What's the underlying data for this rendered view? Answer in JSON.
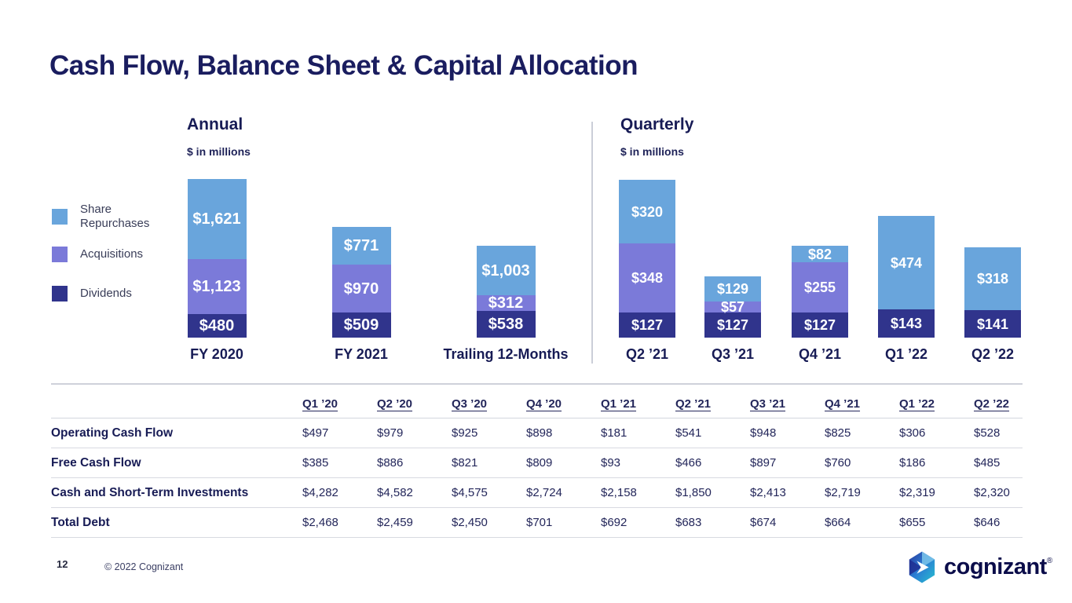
{
  "slide": {
    "title": "Cash Flow, Balance Sheet & Capital Allocation",
    "page_number": "12",
    "copyright": "© 2022 Cognizant",
    "logo_text": "cognizant"
  },
  "colors": {
    "share_repurchases": "#69A5DC",
    "acquisitions": "#7B7AD9",
    "dividends": "#30348C",
    "heading_navy": "#171B55"
  },
  "legend": {
    "items": [
      {
        "key": "share-repurchases",
        "label": "Share Repurchases",
        "color": "#69A5DC"
      },
      {
        "key": "acquisitions",
        "label": "Acquisitions",
        "color": "#7B7AD9"
      },
      {
        "key": "dividends",
        "label": "Dividends",
        "color": "#30348C"
      }
    ]
  },
  "chart_data": [
    {
      "id": "annual",
      "type": "bar",
      "stacked": true,
      "title": "Annual",
      "subtitle": "$ in millions",
      "categories": [
        "FY 2020",
        "FY 2021",
        "Trailing 12-Months"
      ],
      "series": [
        {
          "name": "Share Repurchases",
          "values": [
            1621,
            771,
            1003
          ],
          "display": [
            "$1,621",
            "$771",
            "$1,003"
          ]
        },
        {
          "name": "Acquisitions",
          "values": [
            1123,
            970,
            312
          ],
          "display": [
            "$1,123",
            "$970",
            "$312"
          ]
        },
        {
          "name": "Dividends",
          "values": [
            480,
            509,
            538
          ],
          "display": [
            "$480",
            "$509",
            "$538"
          ]
        }
      ],
      "legend_position": "left",
      "grid": false
    },
    {
      "id": "quarterly",
      "type": "bar",
      "stacked": true,
      "title": "Quarterly",
      "subtitle": "$ in millions",
      "categories": [
        "Q2 ’21",
        "Q3 ’21",
        "Q4 ’21",
        "Q1 ’22",
        "Q2 ’22"
      ],
      "series": [
        {
          "name": "Share Repurchases",
          "values": [
            320,
            129,
            82,
            474,
            318
          ],
          "display": [
            "$320",
            "$129",
            "$82",
            "$474",
            "$318"
          ]
        },
        {
          "name": "Acquisitions",
          "values": [
            348,
            57,
            255,
            null,
            null
          ],
          "display": [
            "$348",
            "$57",
            "$255",
            null,
            null
          ]
        },
        {
          "name": "Dividends",
          "values": [
            127,
            127,
            127,
            143,
            141
          ],
          "display": [
            "$127",
            "$127",
            "$127",
            "$143",
            "$141"
          ]
        }
      ],
      "legend_position": "none",
      "grid": false
    }
  ],
  "table": {
    "columns": [
      "Q1 ’20",
      "Q2 ’20",
      "Q3 ’20",
      "Q4 ’20",
      "Q1 ’21",
      "Q2 ’21",
      "Q3 ’21",
      "Q4 ’21",
      "Q1 ’22",
      "Q2 ’22"
    ],
    "rows": [
      {
        "label": "Operating Cash Flow",
        "values": [
          "$497",
          "$979",
          "$925",
          "$898",
          "$181",
          "$541",
          "$948",
          "$825",
          "$306",
          "$528"
        ]
      },
      {
        "label": "Free Cash Flow",
        "values": [
          "$385",
          "$886",
          "$821",
          "$809",
          "$93",
          "$466",
          "$897",
          "$760",
          "$186",
          "$485"
        ]
      },
      {
        "label": "Cash and Short-Term Investments",
        "values": [
          "$4,282",
          "$4,582",
          "$4,575",
          "$2,724",
          "$2,158",
          "$1,850",
          "$2,413",
          "$2,719",
          "$2,319",
          "$2,320"
        ]
      },
      {
        "label": "Total Debt",
        "values": [
          "$2,468",
          "$2,459",
          "$2,450",
          "$701",
          "$692",
          "$683",
          "$674",
          "$664",
          "$655",
          "$646"
        ]
      }
    ]
  }
}
